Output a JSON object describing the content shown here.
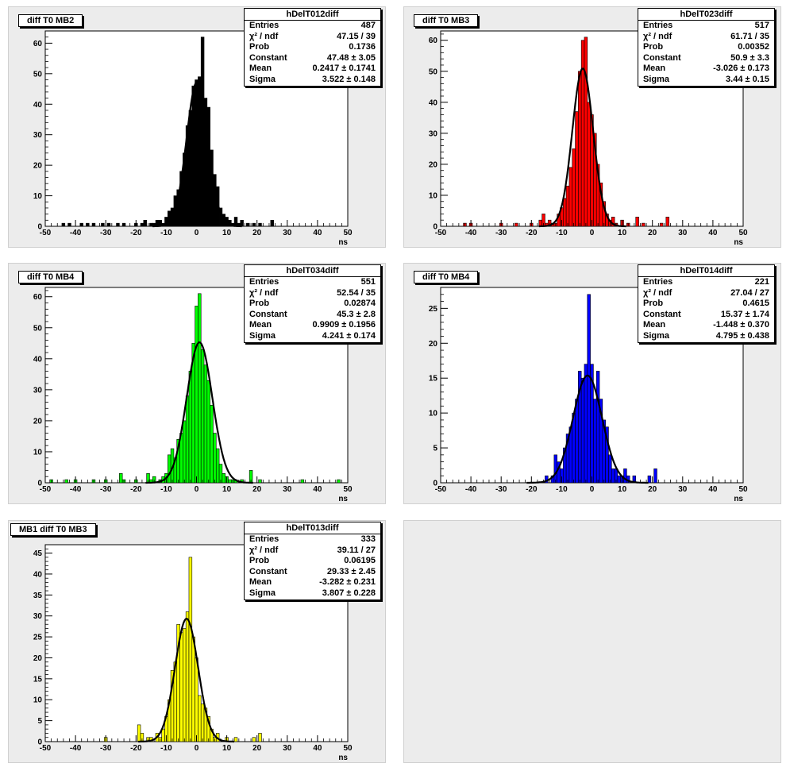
{
  "pads": [
    {
      "id": "pad-mb2",
      "title": "diff T0 MB2",
      "stats": {
        "name": "hDelT012diff",
        "rows": [
          {
            "k": "Entries",
            "v": "487"
          },
          {
            "k": "χ² / ndf",
            "v": "47.15 / 39"
          },
          {
            "k": "Prob",
            "v": "0.1736"
          },
          {
            "k": "Constant",
            "v": "47.48 ± 3.05"
          },
          {
            "k": "Mean",
            "v": "0.2417 ± 0.1741"
          },
          {
            "k": "Sigma",
            "v": "3.522 ± 0.148"
          }
        ]
      },
      "fill": "#000000",
      "xlabel": "ns",
      "xlim": [
        -50,
        50
      ],
      "ylim": [
        0,
        64
      ],
      "yticks": [
        0,
        10,
        20,
        30,
        40,
        50,
        60
      ],
      "xticks": [
        -50,
        -40,
        -30,
        -20,
        -10,
        0,
        10,
        20,
        30,
        40,
        50
      ],
      "fit": {
        "constant": 47.48,
        "mean": 0.2417,
        "sigma": 3.522
      },
      "bins": [
        [
          -44,
          1
        ],
        [
          -42,
          1
        ],
        [
          -38,
          1
        ],
        [
          -36,
          1
        ],
        [
          -34,
          1
        ],
        [
          -31,
          1
        ],
        [
          -29,
          1
        ],
        [
          -26,
          1
        ],
        [
          -24,
          1
        ],
        [
          -20,
          1
        ],
        [
          -18,
          1
        ],
        [
          -17,
          2
        ],
        [
          -15,
          1
        ],
        [
          -14,
          1
        ],
        [
          -13,
          2
        ],
        [
          -12,
          2
        ],
        [
          -11,
          1
        ],
        [
          -10,
          3
        ],
        [
          -9,
          5
        ],
        [
          -8,
          6
        ],
        [
          -7,
          10
        ],
        [
          -6,
          12
        ],
        [
          -5,
          18
        ],
        [
          -4,
          24
        ],
        [
          -3,
          33
        ],
        [
          -2,
          38
        ],
        [
          -1,
          46
        ],
        [
          0,
          48
        ],
        [
          1,
          49
        ],
        [
          2,
          62
        ],
        [
          3,
          42
        ],
        [
          4,
          39
        ],
        [
          5,
          25
        ],
        [
          6,
          17
        ],
        [
          7,
          13
        ],
        [
          8,
          6
        ],
        [
          9,
          4
        ],
        [
          10,
          3
        ],
        [
          11,
          2
        ],
        [
          12,
          1
        ],
        [
          13,
          3
        ],
        [
          14,
          1
        ],
        [
          15,
          2
        ],
        [
          17,
          1
        ],
        [
          19,
          1
        ],
        [
          21,
          1
        ],
        [
          25,
          2
        ]
      ]
    },
    {
      "id": "pad-mb3",
      "title": "diff T0 MB3",
      "stats": {
        "name": "hDelT023diff",
        "rows": [
          {
            "k": "Entries",
            "v": "517"
          },
          {
            "k": "χ² / ndf",
            "v": "61.71 / 35"
          },
          {
            "k": "Prob",
            "v": "0.00352"
          },
          {
            "k": "Constant",
            "v": "50.9 ± 3.3"
          },
          {
            "k": "Mean",
            "v": "-3.026 ± 0.173"
          },
          {
            "k": "Sigma",
            "v": "3.44 ± 0.15"
          }
        ]
      },
      "fill": "#ff0000",
      "xlabel": "ns",
      "xlim": [
        -50,
        50
      ],
      "ylim": [
        0,
        63
      ],
      "yticks": [
        0,
        10,
        20,
        30,
        40,
        50,
        60
      ],
      "xticks": [
        -50,
        -40,
        -30,
        -20,
        -10,
        0,
        10,
        20,
        30,
        40,
        50
      ],
      "fit": {
        "constant": 50.9,
        "mean": -3.026,
        "sigma": 3.44
      },
      "bins": [
        [
          -42,
          1
        ],
        [
          -40,
          1
        ],
        [
          -30,
          1
        ],
        [
          -25,
          1
        ],
        [
          -20,
          1
        ],
        [
          -17,
          2
        ],
        [
          -16,
          4
        ],
        [
          -15,
          1
        ],
        [
          -14,
          2
        ],
        [
          -13,
          1
        ],
        [
          -12,
          1
        ],
        [
          -11,
          4
        ],
        [
          -10,
          6
        ],
        [
          -9,
          9
        ],
        [
          -8,
          13
        ],
        [
          -7,
          19
        ],
        [
          -6,
          25
        ],
        [
          -5,
          37
        ],
        [
          -4,
          50
        ],
        [
          -3,
          60
        ],
        [
          -2,
          61
        ],
        [
          -1,
          40
        ],
        [
          0,
          36
        ],
        [
          1,
          30
        ],
        [
          2,
          20
        ],
        [
          3,
          14
        ],
        [
          4,
          8
        ],
        [
          5,
          4
        ],
        [
          6,
          2
        ],
        [
          7,
          3
        ],
        [
          8,
          1
        ],
        [
          10,
          2
        ],
        [
          12,
          1
        ],
        [
          15,
          3
        ],
        [
          17,
          1
        ],
        [
          23,
          1
        ],
        [
          25,
          3
        ]
      ]
    },
    {
      "id": "pad-mb4a",
      "title": "diff T0 MB4",
      "stats": {
        "name": "hDelT034diff",
        "rows": [
          {
            "k": "Entries",
            "v": "551"
          },
          {
            "k": "χ² / ndf",
            "v": "52.54 / 35"
          },
          {
            "k": "Prob",
            "v": "0.02874"
          },
          {
            "k": "Constant",
            "v": "45.3 ± 2.8"
          },
          {
            "k": "Mean",
            "v": "0.9909 ± 0.1956"
          },
          {
            "k": "Sigma",
            "v": "4.241 ± 0.174"
          }
        ]
      },
      "fill": "#00ff00",
      "xlabel": "ns",
      "xlim": [
        -50,
        50
      ],
      "ylim": [
        0,
        63
      ],
      "yticks": [
        0,
        10,
        20,
        30,
        40,
        50,
        60
      ],
      "xticks": [
        -50,
        -40,
        -30,
        -20,
        -10,
        0,
        10,
        20,
        30,
        40,
        50
      ],
      "fit": {
        "constant": 45.3,
        "mean": 0.9909,
        "sigma": 4.241
      },
      "bins": [
        [
          -48,
          1
        ],
        [
          -43,
          1
        ],
        [
          -40,
          1
        ],
        [
          -34,
          1
        ],
        [
          -30,
          1
        ],
        [
          -25,
          3
        ],
        [
          -24,
          1
        ],
        [
          -20,
          1
        ],
        [
          -16,
          3
        ],
        [
          -15,
          1
        ],
        [
          -14,
          2
        ],
        [
          -12,
          1
        ],
        [
          -11,
          2
        ],
        [
          -10,
          3
        ],
        [
          -9,
          9
        ],
        [
          -8,
          11
        ],
        [
          -7,
          8
        ],
        [
          -6,
          14
        ],
        [
          -5,
          16
        ],
        [
          -4,
          20
        ],
        [
          -3,
          28
        ],
        [
          -2,
          36
        ],
        [
          -1,
          45
        ],
        [
          0,
          57
        ],
        [
          1,
          61
        ],
        [
          2,
          43
        ],
        [
          3,
          38
        ],
        [
          4,
          33
        ],
        [
          5,
          25
        ],
        [
          6,
          16
        ],
        [
          7,
          11
        ],
        [
          8,
          6
        ],
        [
          9,
          3
        ],
        [
          10,
          2
        ],
        [
          11,
          1
        ],
        [
          12,
          1
        ],
        [
          13,
          1
        ],
        [
          15,
          1
        ],
        [
          18,
          4
        ],
        [
          21,
          1
        ],
        [
          35,
          1
        ],
        [
          47,
          1
        ]
      ]
    },
    {
      "id": "pad-mb4b",
      "title": "diff T0 MB4",
      "stats": {
        "name": "hDelT014diff",
        "rows": [
          {
            "k": "Entries",
            "v": "221"
          },
          {
            "k": "χ² / ndf",
            "v": "27.04 / 27"
          },
          {
            "k": "Prob",
            "v": "0.4615"
          },
          {
            "k": "Constant",
            "v": "15.37 ± 1.74"
          },
          {
            "k": "Mean",
            "v": "-1.448 ± 0.370"
          },
          {
            "k": "Sigma",
            "v": "4.795 ± 0.438"
          }
        ]
      },
      "fill": "#0000ff",
      "xlabel": "ns",
      "xlim": [
        -50,
        50
      ],
      "ylim": [
        0,
        28
      ],
      "yticks": [
        0,
        5,
        10,
        15,
        20,
        25
      ],
      "xticks": [
        -50,
        -40,
        -30,
        -20,
        -10,
        0,
        10,
        20,
        30,
        40,
        50
      ],
      "fit": {
        "constant": 15.37,
        "mean": -1.448,
        "sigma": 4.795
      },
      "bins": [
        [
          -15,
          1
        ],
        [
          -13,
          1
        ],
        [
          -12,
          4
        ],
        [
          -11,
          3
        ],
        [
          -10,
          2
        ],
        [
          -9,
          5
        ],
        [
          -8,
          7
        ],
        [
          -7,
          8
        ],
        [
          -6,
          10
        ],
        [
          -5,
          12
        ],
        [
          -4,
          16
        ],
        [
          -3,
          15
        ],
        [
          -2,
          17
        ],
        [
          -1,
          27
        ],
        [
          0,
          17
        ],
        [
          1,
          12
        ],
        [
          2,
          16
        ],
        [
          3,
          12
        ],
        [
          4,
          9
        ],
        [
          5,
          8
        ],
        [
          6,
          4
        ],
        [
          7,
          2
        ],
        [
          8,
          2
        ],
        [
          9,
          1
        ],
        [
          10,
          1
        ],
        [
          11,
          2
        ],
        [
          12,
          1
        ],
        [
          14,
          1
        ],
        [
          19,
          1
        ],
        [
          21,
          2
        ]
      ]
    },
    {
      "id": "pad-mb1",
      "title": "MB1 diff T0 MB3",
      "stats": {
        "name": "hDelT013diff",
        "rows": [
          {
            "k": "Entries",
            "v": "333"
          },
          {
            "k": "χ² / ndf",
            "v": "39.11 / 27"
          },
          {
            "k": "Prob",
            "v": "0.06195"
          },
          {
            "k": "Constant",
            "v": "29.33 ± 2.45"
          },
          {
            "k": "Mean",
            "v": "-3.282 ± 0.231"
          },
          {
            "k": "Sigma",
            "v": "3.807 ± 0.228"
          }
        ]
      },
      "fill": "#ffff00",
      "xlabel": "ns",
      "xlim": [
        -50,
        50
      ],
      "ylim": [
        0,
        47
      ],
      "yticks": [
        0,
        5,
        10,
        15,
        20,
        25,
        30,
        35,
        40,
        45
      ],
      "xticks": [
        -50,
        -40,
        -30,
        -20,
        -10,
        0,
        10,
        20,
        30,
        40,
        50
      ],
      "fit": {
        "constant": 29.33,
        "mean": -3.282,
        "sigma": 3.807
      },
      "bins": [
        [
          -30,
          1
        ],
        [
          -19,
          4
        ],
        [
          -18,
          2
        ],
        [
          -16,
          1
        ],
        [
          -15,
          1
        ],
        [
          -13,
          2
        ],
        [
          -12,
          1
        ],
        [
          -11,
          3
        ],
        [
          -10,
          6
        ],
        [
          -9,
          10
        ],
        [
          -8,
          17
        ],
        [
          -7,
          19
        ],
        [
          -6,
          28
        ],
        [
          -5,
          26
        ],
        [
          -4,
          27
        ],
        [
          -3,
          31
        ],
        [
          -2,
          44
        ],
        [
          -1,
          25
        ],
        [
          0,
          20
        ],
        [
          1,
          11
        ],
        [
          2,
          9
        ],
        [
          3,
          8
        ],
        [
          4,
          6
        ],
        [
          5,
          3
        ],
        [
          6,
          1
        ],
        [
          7,
          2
        ],
        [
          10,
          1
        ],
        [
          13,
          1
        ],
        [
          19,
          1
        ],
        [
          21,
          2
        ]
      ]
    }
  ],
  "chart_data": [
    {
      "type": "bar",
      "title": "diff T0 MB2",
      "xlabel": "ns",
      "ylabel": "",
      "xlim": [
        -50,
        50
      ],
      "ylim": [
        0,
        64
      ],
      "series": [
        {
          "name": "hDelT012diff",
          "values": "see pads.0.bins"
        }
      ]
    },
    {
      "type": "bar",
      "title": "diff T0 MB3",
      "xlabel": "ns",
      "ylabel": "",
      "xlim": [
        -50,
        50
      ],
      "ylim": [
        0,
        63
      ],
      "series": [
        {
          "name": "hDelT023diff",
          "values": "see pads.1.bins"
        }
      ]
    },
    {
      "type": "bar",
      "title": "diff T0 MB4",
      "xlabel": "ns",
      "ylabel": "",
      "xlim": [
        -50,
        50
      ],
      "ylim": [
        0,
        63
      ],
      "series": [
        {
          "name": "hDelT034diff",
          "values": "see pads.2.bins"
        }
      ]
    },
    {
      "type": "bar",
      "title": "diff T0 MB4",
      "xlabel": "ns",
      "ylabel": "",
      "xlim": [
        -50,
        50
      ],
      "ylim": [
        0,
        28
      ],
      "series": [
        {
          "name": "hDelT014diff",
          "values": "see pads.3.bins"
        }
      ]
    },
    {
      "type": "bar",
      "title": "MB1 diff T0 MB3",
      "xlabel": "ns",
      "ylabel": "",
      "xlim": [
        -50,
        50
      ],
      "ylim": [
        0,
        47
      ],
      "series": [
        {
          "name": "hDelT013diff",
          "values": "see pads.4.bins"
        }
      ]
    }
  ]
}
